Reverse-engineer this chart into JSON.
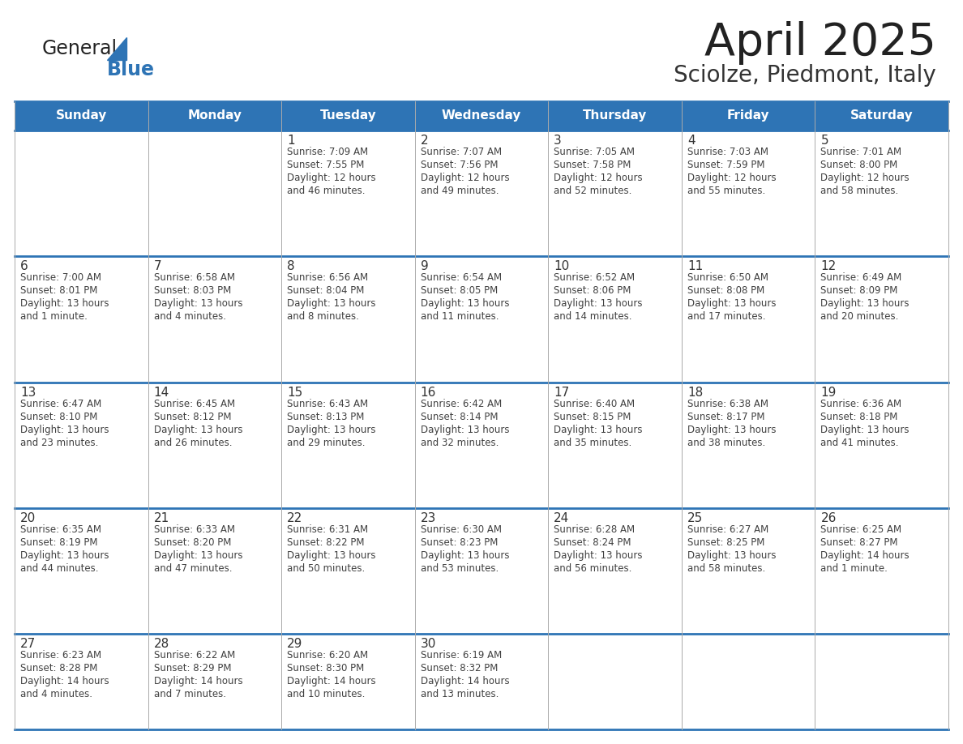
{
  "title": "April 2025",
  "subtitle": "Sciolze, Piedmont, Italy",
  "header_bg_color": "#2E74B5",
  "header_text_color": "#FFFFFF",
  "cell_bg_color": "#FFFFFF",
  "row_border_color": "#2E74B5",
  "col_border_color": "#AAAAAA",
  "text_color": "#404040",
  "day_number_color": "#333333",
  "day_headers": [
    "Sunday",
    "Monday",
    "Tuesday",
    "Wednesday",
    "Thursday",
    "Friday",
    "Saturday"
  ],
  "weeks": [
    [
      {
        "day": "",
        "info": ""
      },
      {
        "day": "",
        "info": ""
      },
      {
        "day": "1",
        "info": "Sunrise: 7:09 AM\nSunset: 7:55 PM\nDaylight: 12 hours\nand 46 minutes."
      },
      {
        "day": "2",
        "info": "Sunrise: 7:07 AM\nSunset: 7:56 PM\nDaylight: 12 hours\nand 49 minutes."
      },
      {
        "day": "3",
        "info": "Sunrise: 7:05 AM\nSunset: 7:58 PM\nDaylight: 12 hours\nand 52 minutes."
      },
      {
        "day": "4",
        "info": "Sunrise: 7:03 AM\nSunset: 7:59 PM\nDaylight: 12 hours\nand 55 minutes."
      },
      {
        "day": "5",
        "info": "Sunrise: 7:01 AM\nSunset: 8:00 PM\nDaylight: 12 hours\nand 58 minutes."
      }
    ],
    [
      {
        "day": "6",
        "info": "Sunrise: 7:00 AM\nSunset: 8:01 PM\nDaylight: 13 hours\nand 1 minute."
      },
      {
        "day": "7",
        "info": "Sunrise: 6:58 AM\nSunset: 8:03 PM\nDaylight: 13 hours\nand 4 minutes."
      },
      {
        "day": "8",
        "info": "Sunrise: 6:56 AM\nSunset: 8:04 PM\nDaylight: 13 hours\nand 8 minutes."
      },
      {
        "day": "9",
        "info": "Sunrise: 6:54 AM\nSunset: 8:05 PM\nDaylight: 13 hours\nand 11 minutes."
      },
      {
        "day": "10",
        "info": "Sunrise: 6:52 AM\nSunset: 8:06 PM\nDaylight: 13 hours\nand 14 minutes."
      },
      {
        "day": "11",
        "info": "Sunrise: 6:50 AM\nSunset: 8:08 PM\nDaylight: 13 hours\nand 17 minutes."
      },
      {
        "day": "12",
        "info": "Sunrise: 6:49 AM\nSunset: 8:09 PM\nDaylight: 13 hours\nand 20 minutes."
      }
    ],
    [
      {
        "day": "13",
        "info": "Sunrise: 6:47 AM\nSunset: 8:10 PM\nDaylight: 13 hours\nand 23 minutes."
      },
      {
        "day": "14",
        "info": "Sunrise: 6:45 AM\nSunset: 8:12 PM\nDaylight: 13 hours\nand 26 minutes."
      },
      {
        "day": "15",
        "info": "Sunrise: 6:43 AM\nSunset: 8:13 PM\nDaylight: 13 hours\nand 29 minutes."
      },
      {
        "day": "16",
        "info": "Sunrise: 6:42 AM\nSunset: 8:14 PM\nDaylight: 13 hours\nand 32 minutes."
      },
      {
        "day": "17",
        "info": "Sunrise: 6:40 AM\nSunset: 8:15 PM\nDaylight: 13 hours\nand 35 minutes."
      },
      {
        "day": "18",
        "info": "Sunrise: 6:38 AM\nSunset: 8:17 PM\nDaylight: 13 hours\nand 38 minutes."
      },
      {
        "day": "19",
        "info": "Sunrise: 6:36 AM\nSunset: 8:18 PM\nDaylight: 13 hours\nand 41 minutes."
      }
    ],
    [
      {
        "day": "20",
        "info": "Sunrise: 6:35 AM\nSunset: 8:19 PM\nDaylight: 13 hours\nand 44 minutes."
      },
      {
        "day": "21",
        "info": "Sunrise: 6:33 AM\nSunset: 8:20 PM\nDaylight: 13 hours\nand 47 minutes."
      },
      {
        "day": "22",
        "info": "Sunrise: 6:31 AM\nSunset: 8:22 PM\nDaylight: 13 hours\nand 50 minutes."
      },
      {
        "day": "23",
        "info": "Sunrise: 6:30 AM\nSunset: 8:23 PM\nDaylight: 13 hours\nand 53 minutes."
      },
      {
        "day": "24",
        "info": "Sunrise: 6:28 AM\nSunset: 8:24 PM\nDaylight: 13 hours\nand 56 minutes."
      },
      {
        "day": "25",
        "info": "Sunrise: 6:27 AM\nSunset: 8:25 PM\nDaylight: 13 hours\nand 58 minutes."
      },
      {
        "day": "26",
        "info": "Sunrise: 6:25 AM\nSunset: 8:27 PM\nDaylight: 14 hours\nand 1 minute."
      }
    ],
    [
      {
        "day": "27",
        "info": "Sunrise: 6:23 AM\nSunset: 8:28 PM\nDaylight: 14 hours\nand 4 minutes."
      },
      {
        "day": "28",
        "info": "Sunrise: 6:22 AM\nSunset: 8:29 PM\nDaylight: 14 hours\nand 7 minutes."
      },
      {
        "day": "29",
        "info": "Sunrise: 6:20 AM\nSunset: 8:30 PM\nDaylight: 14 hours\nand 10 minutes."
      },
      {
        "day": "30",
        "info": "Sunrise: 6:19 AM\nSunset: 8:32 PM\nDaylight: 14 hours\nand 13 minutes."
      },
      {
        "day": "",
        "info": ""
      },
      {
        "day": "",
        "info": ""
      },
      {
        "day": "",
        "info": ""
      }
    ]
  ],
  "logo_general_color": "#222222",
  "logo_blue_color": "#2E74B5",
  "logo_triangle_color": "#2E74B5",
  "title_color": "#222222",
  "subtitle_color": "#333333"
}
